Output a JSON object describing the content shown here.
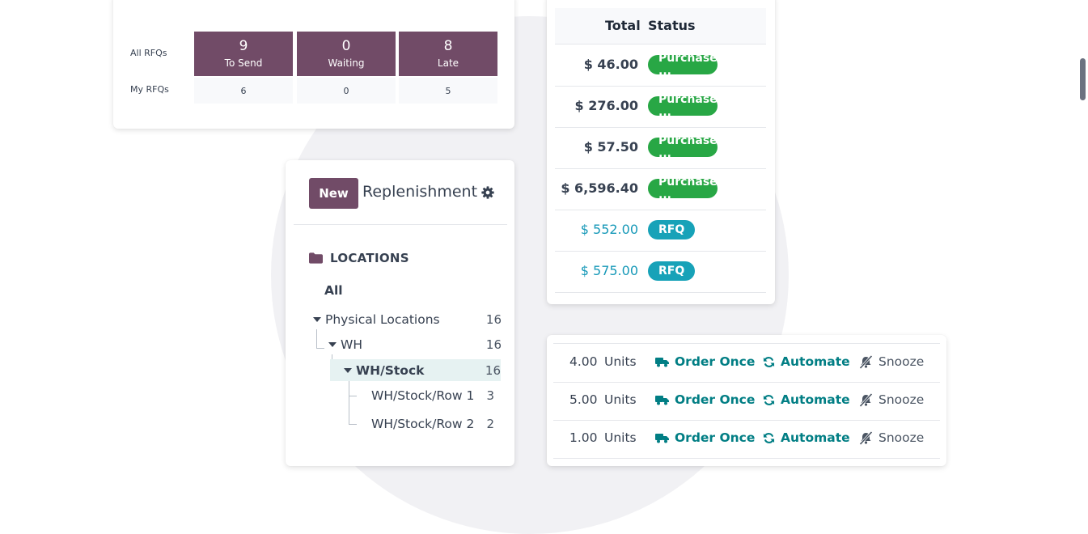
{
  "rfq": {
    "row_all_label": "All RFQs",
    "row_my_label": "My RFQs",
    "to_send": {
      "count": "9",
      "label": "To Send",
      "mine": "6"
    },
    "waiting": {
      "count": "0",
      "label": "Waiting",
      "mine": "0"
    },
    "late": {
      "count": "8",
      "label": "Late",
      "mine": "5"
    }
  },
  "replenishment": {
    "new_label": "New",
    "title": "Replenishment",
    "locations_heading": "LOCATIONS",
    "tree": {
      "all": "All",
      "physical": {
        "label": "Physical Locations",
        "count": "16"
      },
      "wh": {
        "label": "WH",
        "count": "16"
      },
      "wh_stock": {
        "label": "WH/Stock",
        "count": "16"
      },
      "row1": {
        "label": "WH/Stock/Row 1",
        "count": "3"
      },
      "row2": {
        "label": "WH/Stock/Row 2",
        "count": "2"
      }
    }
  },
  "orders": {
    "header_total": "Total",
    "header_status": "Status",
    "rows": [
      {
        "total": "$ 46.00",
        "status": "Purchase ..."
      },
      {
        "total": "$ 276.00",
        "status": "Purchase ..."
      },
      {
        "total": "$ 57.50",
        "status": "Purchase ..."
      },
      {
        "total": "$ 6,596.40",
        "status": "Purchase ..."
      },
      {
        "total": "$ 552.00",
        "status": "RFQ"
      },
      {
        "total": "$ 575.00",
        "status": "RFQ"
      }
    ]
  },
  "lines": {
    "unit": "Units",
    "order_once": "Order Once",
    "automate": "Automate",
    "snooze": "Snooze",
    "rows": [
      {
        "qty": "4.00"
      },
      {
        "qty": "5.00"
      },
      {
        "qty": "1.00"
      }
    ]
  },
  "colors": {
    "primary": "#714b67",
    "purchase_badge": "#28a745",
    "rfq_badge": "#17a2b8",
    "action_link": "#017e84"
  },
  "icons": [
    "gear-icon",
    "folder-icon",
    "caret-down-icon",
    "truck-icon",
    "refresh-icon",
    "bell-slash-icon"
  ]
}
